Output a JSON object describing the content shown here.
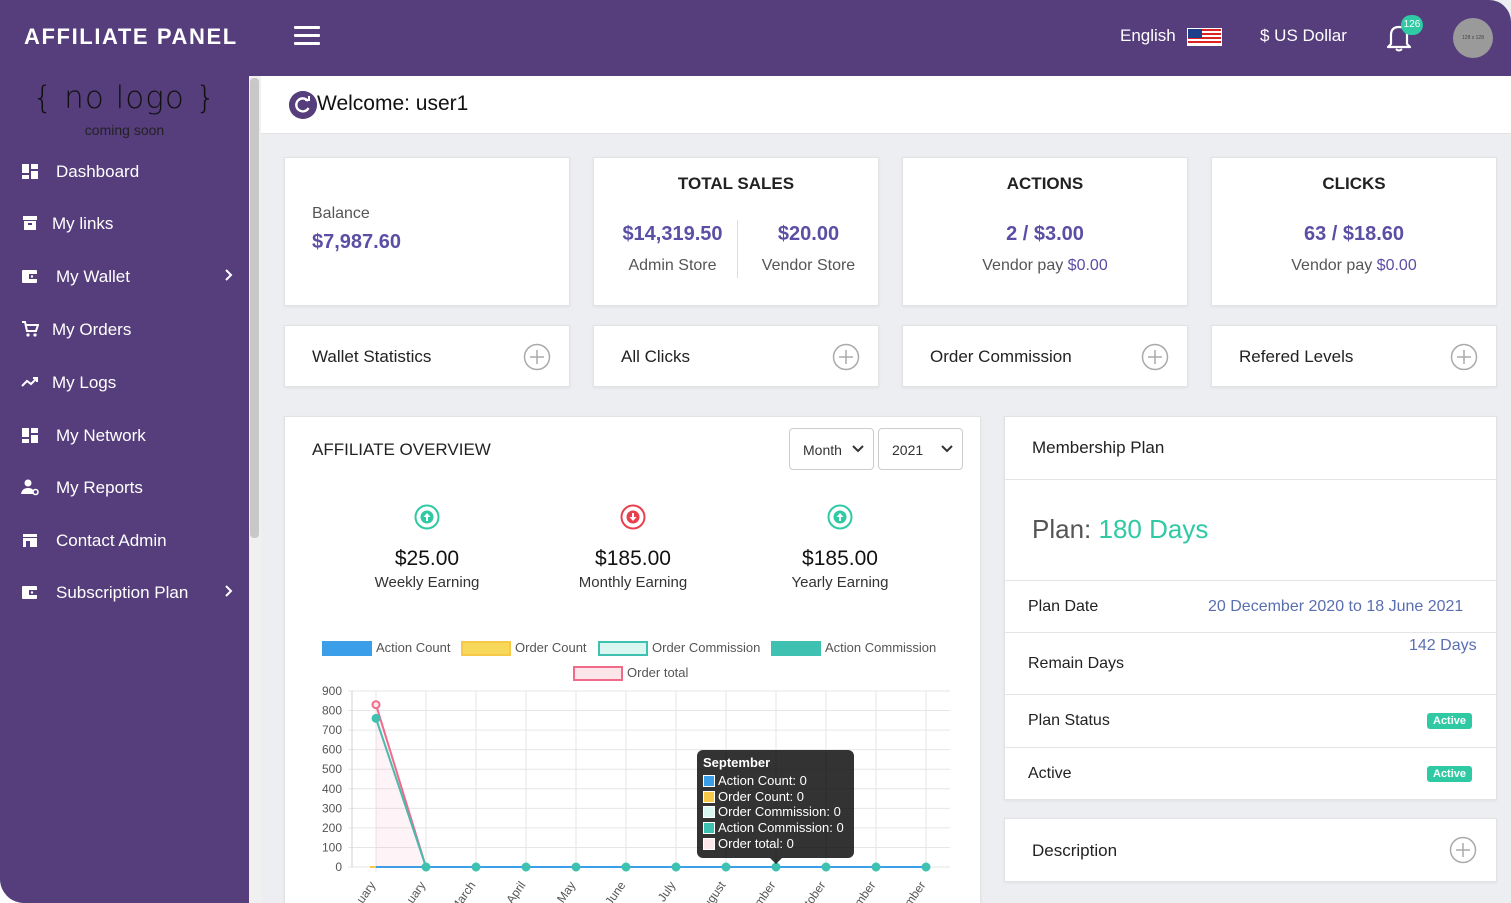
{
  "header": {
    "brand": "AFFILIATE PANEL",
    "language": "English",
    "currency": "$ US Dollar",
    "notification_count": "126",
    "avatar_text": "128 x 128"
  },
  "sidebar": {
    "logo_main": "{ no logo }",
    "logo_sub": "coming soon",
    "items": [
      {
        "label": "Dashboard",
        "icon": "dashboard-icon"
      },
      {
        "label": "My links",
        "icon": "archive-icon"
      },
      {
        "label": "My Wallet",
        "icon": "wallet-icon",
        "has_submenu": true
      },
      {
        "label": "My Orders",
        "icon": "cart-icon"
      },
      {
        "label": "My Logs",
        "icon": "trending-icon"
      },
      {
        "label": "My Network",
        "icon": "dashboard-icon"
      },
      {
        "label": "My Reports",
        "icon": "user-settings-icon"
      },
      {
        "label": "Contact Admin",
        "icon": "store-icon"
      },
      {
        "label": "Subscription Plan",
        "icon": "wallet-icon",
        "has_submenu": true
      }
    ]
  },
  "welcome": {
    "text": "Welcome: user1"
  },
  "stats": {
    "balance": {
      "label": "Balance",
      "value": "$7,987.60"
    },
    "total_sales": {
      "title": "TOTAL SALES",
      "admin_value": "$14,319.50",
      "admin_label": "Admin Store",
      "vendor_value": "$20.00",
      "vendor_label": "Vendor Store"
    },
    "actions": {
      "title": "ACTIONS",
      "value": "2 / $3.00",
      "sub_label": "Vendor pay",
      "sub_value": "$0.00"
    },
    "clicks": {
      "title": "CLICKS",
      "value": "63 / $18.60",
      "sub_label": "Vendor pay",
      "sub_value": "$0.00"
    }
  },
  "expanders": [
    "Wallet Statistics",
    "All Clicks",
    "Order Commission",
    "Refered Levels"
  ],
  "overview": {
    "title": "AFFILIATE OVERVIEW",
    "period_select": "Month",
    "year_select": "2021",
    "earnings": [
      {
        "amount": "$25.00",
        "label": "Weekly Earning",
        "trend": "up"
      },
      {
        "amount": "$185.00",
        "label": "Monthly Earning",
        "trend": "down"
      },
      {
        "amount": "$185.00",
        "label": "Yearly Earning",
        "trend": "up"
      }
    ],
    "tooltip": {
      "title": "September",
      "rows": [
        "Action Count: 0",
        "Order Count: 0",
        "Order Commission: 0",
        "Action Commission: 0",
        "Order total: 0"
      ]
    }
  },
  "chart_data": {
    "type": "line",
    "categories": [
      "January",
      "February",
      "March",
      "April",
      "May",
      "June",
      "July",
      "August",
      "September",
      "October",
      "November",
      "December"
    ],
    "tick_labels": [
      "uary",
      "uary",
      "March",
      "April",
      "May",
      "June",
      "July",
      "ugust",
      "mber",
      "tober",
      "mber",
      "mber"
    ],
    "ylim": [
      0,
      900
    ],
    "yticks": [
      0,
      100,
      200,
      300,
      400,
      500,
      600,
      700,
      800,
      900
    ],
    "grid": true,
    "legend_position": "top",
    "series": [
      {
        "name": "Action Count",
        "color": "#3b9ee8",
        "values": [
          0,
          0,
          0,
          0,
          0,
          0,
          0,
          0,
          0,
          0,
          0,
          0
        ]
      },
      {
        "name": "Order Count",
        "color": "#f7c948",
        "values": [
          0,
          0,
          0,
          0,
          0,
          0,
          0,
          0,
          0,
          0,
          0,
          0
        ]
      },
      {
        "name": "Order Commission",
        "color": "#9fe3d9",
        "values": [
          0,
          0,
          0,
          0,
          0,
          0,
          0,
          0,
          0,
          0,
          0,
          0
        ]
      },
      {
        "name": "Action Commission",
        "color": "#3ec1b0",
        "values": [
          760,
          0,
          0,
          0,
          0,
          0,
          0,
          0,
          0,
          0,
          0,
          0
        ]
      },
      {
        "name": "Order total",
        "color": "#f06b8a",
        "values": [
          830,
          0,
          0,
          0,
          0,
          0,
          0,
          0,
          0,
          0,
          0,
          0
        ]
      }
    ]
  },
  "membership": {
    "title": "Membership Plan",
    "plan_label": "Plan:",
    "plan_value": "180 Days",
    "rows": {
      "plan_date_label": "Plan Date",
      "plan_date_value": "20 December 2020 to 18 June 2021",
      "remain_label": "Remain Days",
      "remain_value": "142 Days",
      "status_label": "Plan Status",
      "status_value": "Active",
      "active_label": "Active",
      "active_value": "Active"
    },
    "description": "Description"
  },
  "colors": {
    "primary": "#563d7c",
    "accent_teal": "#2fc9a4",
    "value_blue": "#5a4fa4",
    "down_red": "#e8404e"
  }
}
